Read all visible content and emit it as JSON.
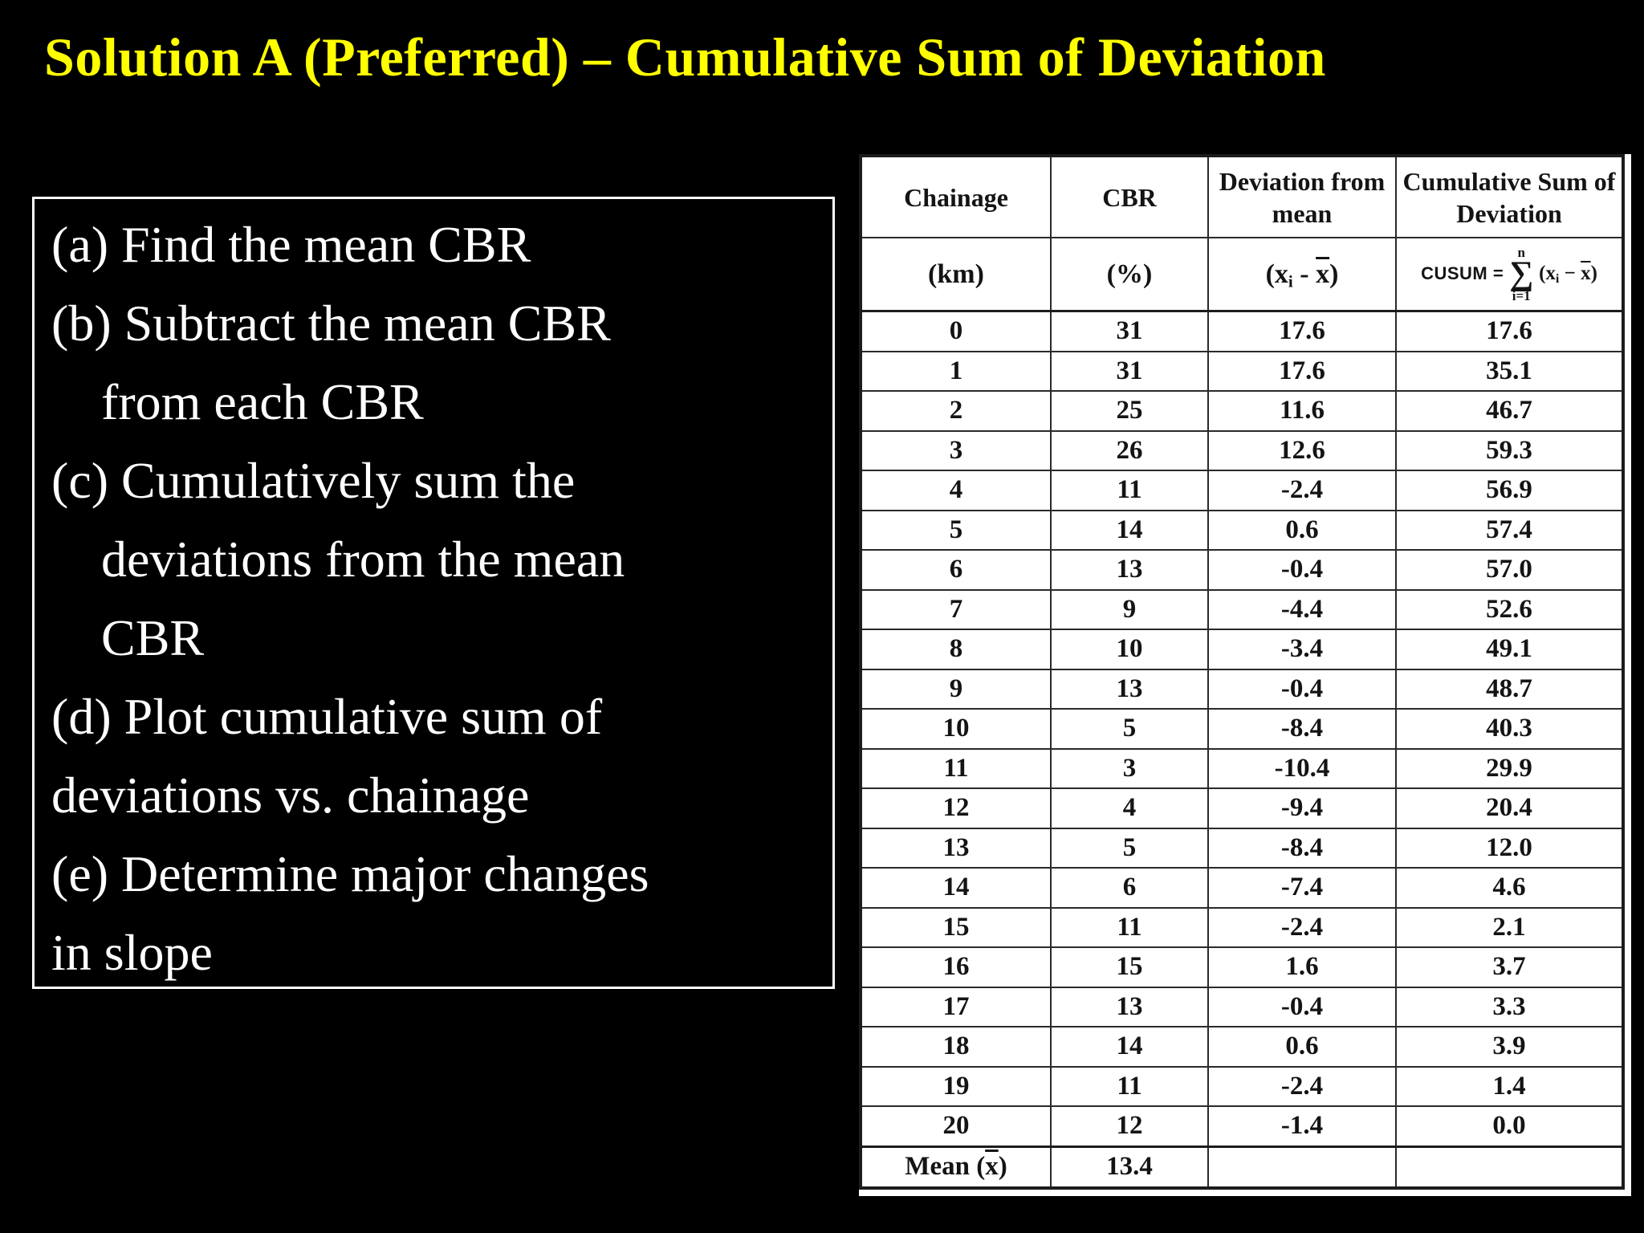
{
  "slide": {
    "title": "Solution A (Preferred) – Cumulative Sum of Deviation",
    "steps_lines": [
      {
        "text": "(a) Find the mean CBR",
        "indent": "none"
      },
      {
        "text": "(b) Subtract the mean CBR",
        "indent": "none"
      },
      {
        "text": "from each CBR",
        "indent": "deep"
      },
      {
        "text": "(c) Cumulatively sum the",
        "indent": "none"
      },
      {
        "text": "deviations from the mean",
        "indent": "deep"
      },
      {
        "text": "CBR",
        "indent": "deep"
      },
      {
        "text": "(d) Plot cumulative sum of",
        "indent": "none"
      },
      {
        "text": "deviations vs. chainage",
        "indent": "none"
      },
      {
        "text": "(e) Determine major changes",
        "indent": "none"
      },
      {
        "text": "in slope",
        "indent": "none"
      }
    ],
    "colors": {
      "background": "#000000",
      "title": "#ffff00",
      "body_text": "#ffffff",
      "table_text": "#141414",
      "table_background": "#ffffff"
    }
  },
  "chart_data": {
    "type": "table",
    "title": "Cumulative Sum of Deviation of CBR vs Chainage",
    "categories": [
      0,
      1,
      2,
      3,
      4,
      5,
      6,
      7,
      8,
      9,
      10,
      11,
      12,
      13,
      14,
      15,
      16,
      17,
      18,
      19,
      20
    ],
    "series": [
      {
        "name": "CBR (%)",
        "values": [
          31,
          31,
          25,
          26,
          11,
          14,
          13,
          9,
          10,
          13,
          5,
          3,
          4,
          5,
          6,
          11,
          15,
          13,
          14,
          11,
          12
        ]
      },
      {
        "name": "Deviation from mean",
        "values": [
          17.6,
          17.6,
          11.6,
          12.6,
          -2.4,
          0.6,
          -0.4,
          -4.4,
          -3.4,
          -0.4,
          -8.4,
          -10.4,
          -9.4,
          -8.4,
          -7.4,
          -2.4,
          1.6,
          -0.4,
          0.6,
          -2.4,
          -1.4
        ]
      },
      {
        "name": "Cumulative Sum of Deviation",
        "values": [
          17.6,
          35.1,
          46.7,
          59.3,
          56.9,
          57.4,
          57.0,
          52.6,
          49.1,
          48.7,
          40.3,
          29.9,
          20.4,
          12.0,
          4.6,
          2.1,
          3.7,
          3.3,
          3.9,
          1.4,
          0.0
        ]
      }
    ],
    "mean_cbr": 13.4
  },
  "table": {
    "headers": [
      "Chainage",
      "CBR",
      "Deviation from mean",
      "Cumulative Sum of Deviation"
    ],
    "units": {
      "km": "(km)",
      "pct": "(%)",
      "dev": {
        "p1": "(x",
        "sub": "i",
        "p2": " - ",
        "x": "x",
        "p3": ")"
      }
    },
    "formula": {
      "label": "CUSUM =",
      "top": "n",
      "sigma": "∑",
      "bottom": "i=1",
      "p1": "(x",
      "sub": "i",
      "p2": " − ",
      "x": "x",
      "p3": ")"
    },
    "rows": [
      [
        "0",
        "31",
        "17.6",
        "17.6"
      ],
      [
        "1",
        "31",
        "17.6",
        "35.1"
      ],
      [
        "2",
        "25",
        "11.6",
        "46.7"
      ],
      [
        "3",
        "26",
        "12.6",
        "59.3"
      ],
      [
        "4",
        "11",
        "-2.4",
        "56.9"
      ],
      [
        "5",
        "14",
        "0.6",
        "57.4"
      ],
      [
        "6",
        "13",
        "-0.4",
        "57.0"
      ],
      [
        "7",
        "9",
        "-4.4",
        "52.6"
      ],
      [
        "8",
        "10",
        "-3.4",
        "49.1"
      ],
      [
        "9",
        "13",
        "-0.4",
        "48.7"
      ],
      [
        "10",
        "5",
        "-8.4",
        "40.3"
      ],
      [
        "11",
        "3",
        "-10.4",
        "29.9"
      ],
      [
        "12",
        "4",
        "-9.4",
        "20.4"
      ],
      [
        "13",
        "5",
        "-8.4",
        "12.0"
      ],
      [
        "14",
        "6",
        "-7.4",
        "4.6"
      ],
      [
        "15",
        "11",
        "-2.4",
        "2.1"
      ],
      [
        "16",
        "15",
        "1.6",
        "3.7"
      ],
      [
        "17",
        "13",
        "-0.4",
        "3.3"
      ],
      [
        "18",
        "14",
        "0.6",
        "3.9"
      ],
      [
        "19",
        "11",
        "-2.4",
        "1.4"
      ],
      [
        "20",
        "12",
        "-1.4",
        "0.0"
      ]
    ],
    "mean": {
      "p1": "Mean (",
      "x": "x",
      "p2": ")",
      "value": "13.4"
    }
  }
}
